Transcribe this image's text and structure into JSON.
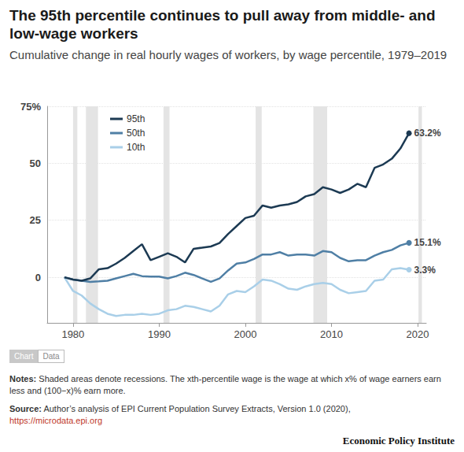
{
  "chart_data": {
    "type": "line",
    "title": "The 95th percentile continues to pull away from middle- and low-wage workers",
    "subtitle": "Cumulative change in real hourly wages of workers, by wage percentile, 1979–2019",
    "x": [
      1979,
      1980,
      1981,
      1982,
      1983,
      1984,
      1985,
      1986,
      1987,
      1988,
      1989,
      1990,
      1991,
      1992,
      1993,
      1994,
      1995,
      1996,
      1997,
      1998,
      1999,
      2000,
      2001,
      2002,
      2003,
      2004,
      2005,
      2006,
      2007,
      2008,
      2009,
      2010,
      2011,
      2012,
      2013,
      2014,
      2015,
      2016,
      2017,
      2018,
      2019
    ],
    "series": [
      {
        "name": "95th",
        "color": "#1c3a53",
        "values": [
          0,
          -1,
          -1.5,
          -0.5,
          3.5,
          4,
          6,
          8.5,
          11.5,
          14.5,
          7.5,
          9,
          10.5,
          9,
          6.5,
          12.5,
          13,
          13.5,
          15,
          19,
          22.5,
          26,
          27,
          31.5,
          30.5,
          31.5,
          32,
          33,
          35.5,
          36.5,
          39.5,
          38.5,
          37,
          38.5,
          41,
          39.5,
          48,
          49.5,
          52,
          56.5,
          63.2
        ],
        "value_labels": [
          null,
          null,
          null,
          null,
          null,
          null,
          null,
          null,
          null,
          null,
          null,
          null,
          null,
          null,
          null,
          null,
          null,
          null,
          null,
          null,
          null,
          null,
          null,
          null,
          null,
          null,
          null,
          null,
          null,
          null,
          null,
          null,
          null,
          null,
          null,
          null,
          null,
          null,
          null,
          null,
          "63.2%"
        ]
      },
      {
        "name": "50th",
        "color": "#4f7fa5",
        "values": [
          0,
          -1,
          -1.5,
          -2,
          -1.8,
          -1.5,
          -0.5,
          0.5,
          1.5,
          0.5,
          0.3,
          0.3,
          -0.5,
          0.5,
          2,
          1,
          -0.5,
          -2,
          -0.5,
          3,
          6,
          6.5,
          8,
          10,
          10,
          11,
          9.5,
          10,
          10,
          9.5,
          11.5,
          11,
          8.5,
          7,
          7.5,
          7.5,
          9.5,
          11,
          12,
          14,
          15.1
        ],
        "value_labels": [
          null,
          null,
          null,
          null,
          null,
          null,
          null,
          null,
          null,
          null,
          null,
          null,
          null,
          null,
          null,
          null,
          null,
          null,
          null,
          null,
          null,
          null,
          null,
          null,
          null,
          null,
          null,
          null,
          null,
          null,
          null,
          null,
          null,
          null,
          null,
          null,
          null,
          null,
          null,
          null,
          "15.1%"
        ]
      },
      {
        "name": "10th",
        "color": "#a9cfe8",
        "values": [
          0,
          -6,
          -8,
          -11.5,
          -14,
          -16,
          -17,
          -16.5,
          -16.5,
          -16,
          -16.5,
          -16,
          -14.5,
          -14,
          -12.5,
          -13,
          -14,
          -15,
          -12.5,
          -7.5,
          -6,
          -6.5,
          -4,
          -1,
          -1.5,
          -3,
          -5,
          -5.5,
          -4,
          -3,
          -2.5,
          -3,
          -5.5,
          -7,
          -6.5,
          -6,
          -1.5,
          -1,
          3.5,
          4,
          3.3
        ],
        "value_labels": [
          null,
          null,
          null,
          null,
          null,
          null,
          null,
          null,
          null,
          null,
          null,
          null,
          null,
          null,
          null,
          null,
          null,
          null,
          null,
          null,
          null,
          null,
          null,
          null,
          null,
          null,
          null,
          null,
          null,
          null,
          null,
          null,
          null,
          null,
          null,
          null,
          null,
          null,
          null,
          null,
          "3.3%"
        ]
      }
    ],
    "recessions": [
      [
        1980.0,
        1980.5
      ],
      [
        1981.5,
        1982.9
      ],
      [
        1990.5,
        1991.2
      ],
      [
        2001.2,
        2001.9
      ],
      [
        2007.9,
        2009.5
      ],
      [
        2020.1,
        2020.5
      ]
    ],
    "xlim": [
      1977,
      2021
    ],
    "xticks": [
      1980,
      1990,
      2000,
      2010,
      2020
    ],
    "ylim": [
      -20,
      75
    ],
    "yticks": [
      0,
      25,
      50,
      {
        "value": 75,
        "label": "75%"
      }
    ],
    "grid": true,
    "legend": "top-left",
    "marker": "circle",
    "line_style": "solid",
    "data_labels": true,
    "tabs": [
      "Chart",
      "Data"
    ],
    "notes_label": "Notes:",
    "notes": "Shaded areas denote recessions. The xth-percentile wage is the wage at which x% of wage earners earn less and (100−x)% earn more.",
    "source_label": "Source:",
    "source": "Author’s analysis of EPI Current Population Survey Extracts, Version 1.0 (2020),",
    "source_url": "https://microdata.epi.org",
    "publisher": "Economic Policy Institute"
  }
}
